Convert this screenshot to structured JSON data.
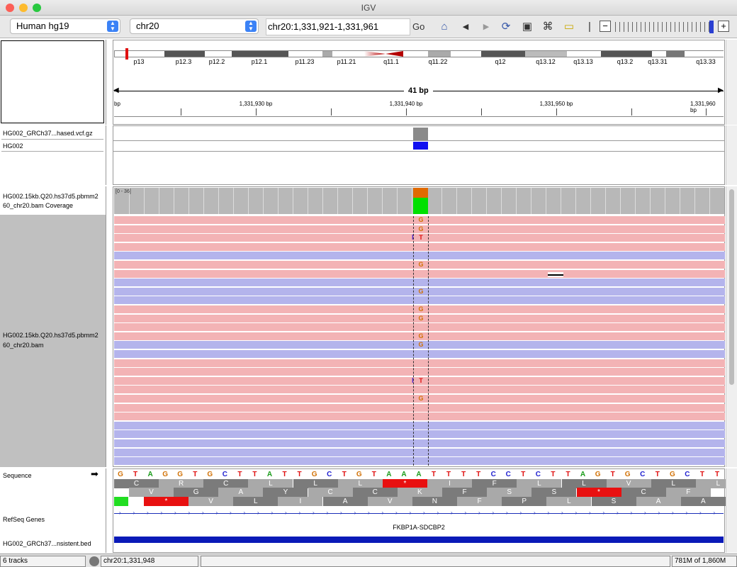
{
  "window": {
    "title": "IGV"
  },
  "toolbar": {
    "genome": "Human hg19",
    "chromosome": "chr20",
    "locus": "chr20:1,331,921-1,331,961",
    "go_label": "Go"
  },
  "ruler": {
    "width_label": "41 bp",
    "ticks": [
      "1,331,930 bp",
      "1,331,940 bp",
      "1,331,950 bp",
      "1,331,960 bp"
    ],
    "left_tick": "bp"
  },
  "ideogram": {
    "bands": [
      "p13",
      "p12.3",
      "p12.2",
      "p12.1",
      "p11.23",
      "p11.21",
      "q11.1",
      "q11.22",
      "q12",
      "q13.12",
      "q13.13",
      "q13.2",
      "q13.31",
      "q13.33"
    ]
  },
  "tracks": {
    "vcf_name": "HG002_GRCh37...hased.vcf.gz",
    "sample_name": "HG002",
    "coverage_name_1": "HG002.15kb.Q20.hs37d5.pbmm2",
    "coverage_name_2": "60_chr20.bam Coverage",
    "coverage_range": "[0 - 36]",
    "bam_name_1": "HG002.15kb.Q20.hs37d5.pbmm2",
    "bam_name_2": "60_chr20.bam",
    "sequence_label": "Sequence",
    "sequence_arrow": "➡",
    "refseq_label": "RefSeq Genes",
    "gene_name": "FKBP1A-SDCBP2",
    "bed_name": "HG002_GRCh37...nsistent.bed"
  },
  "sequence": [
    "G",
    "T",
    "A",
    "G",
    "G",
    "T",
    "G",
    "C",
    "T",
    "T",
    "A",
    "T",
    "T",
    "G",
    "C",
    "T",
    "G",
    "T",
    "A",
    "A",
    "A",
    "T",
    "T",
    "T",
    "T",
    "C",
    "C",
    "T",
    "C",
    "T",
    "T",
    "A",
    "G",
    "T",
    "G",
    "C",
    "T",
    "G",
    "C",
    "T",
    "T"
  ],
  "translation": {
    "frame1": [
      "C",
      "R",
      "C",
      "L",
      "L",
      "L",
      "*",
      "I",
      "F",
      "L",
      "L",
      "V",
      "L",
      "L"
    ],
    "frame2": [
      "V",
      "G",
      "A",
      "Y",
      "C",
      "C",
      "K",
      "F",
      "S",
      "S",
      "*",
      "C",
      "F"
    ],
    "frame3": [
      "*",
      "V",
      "L",
      "I",
      "A",
      "V",
      "N",
      "F",
      "P",
      "L",
      "S",
      "A",
      "A"
    ]
  },
  "reads": {
    "mismatches": [
      "G",
      "G",
      "T",
      "G",
      "G",
      "G",
      "G",
      "G",
      "G",
      "T",
      "G"
    ]
  },
  "colors": {
    "forward_read": "#f3b3b5",
    "reverse_read": "#b4b4ec",
    "A": "#1a9c1a",
    "C": "#2020d0",
    "G": "#d17105",
    "T": "#e01010"
  },
  "status": {
    "tracks": "6 tracks",
    "position": "chr20:1,331,948",
    "memory": "781M of 1,860M"
  }
}
